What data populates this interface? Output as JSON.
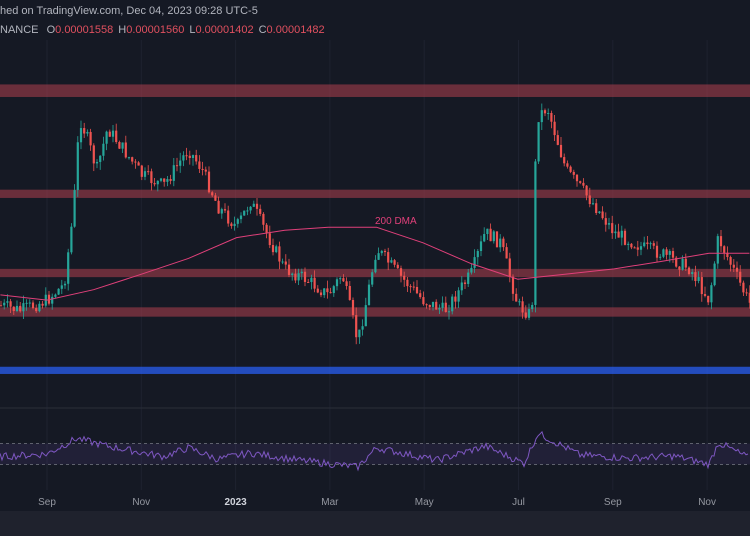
{
  "header": {
    "published": "hed on TradingView.com, Dec 04, 2023 09:28 UTC-5",
    "symbol": "NANCE",
    "ohlc": [
      {
        "k": "O",
        "v": "0.00001558"
      },
      {
        "k": "H",
        "v": "0.00001560"
      },
      {
        "k": "L",
        "v": "0.00001402"
      },
      {
        "k": "C",
        "v": "0.00001482"
      }
    ]
  },
  "colors": {
    "background": "#151924",
    "zone": "#b0404e",
    "support": "#2962ff",
    "dma": "#e0407a",
    "rsi": "#7e57c2",
    "up": "#26a69a",
    "down": "#ef5350"
  },
  "chart_data": [
    {
      "type": "line",
      "title": "",
      "annotation": "200 DMA",
      "xlabel": "",
      "ylabel": "",
      "x_ticks": [
        "Sep",
        "Nov",
        "2023",
        "Mar",
        "May",
        "Jul",
        "Sep",
        "Nov"
      ],
      "x_range": [
        "2022-08-02",
        "2023-11-27"
      ],
      "y_range": [
        8.5e-06,
        3.2e-05
      ],
      "price": [
        [
          "2022-08-02",
          1.468e-05
        ],
        [
          "2022-08-15",
          1.434e-05
        ],
        [
          "2022-09-01",
          1.502e-05
        ],
        [
          "2022-09-12",
          1.604e-05
        ],
        [
          "2022-09-18",
          2.08e-05
        ],
        [
          "2022-09-22",
          2.692e-05
        ],
        [
          "2022-09-27",
          2.556e-05
        ],
        [
          "2022-10-03",
          2.352e-05
        ],
        [
          "2022-10-10",
          2.624e-05
        ],
        [
          "2022-10-20",
          2.488e-05
        ],
        [
          "2022-11-01",
          2.318e-05
        ],
        [
          "2022-11-15",
          2.25e-05
        ],
        [
          "2022-12-01",
          2.488e-05
        ],
        [
          "2022-12-10",
          2.352e-05
        ],
        [
          "2022-12-20",
          2.114e-05
        ],
        [
          "2023-01-01",
          1.978e-05
        ],
        [
          "2023-01-10",
          2.148e-05
        ],
        [
          "2023-01-20",
          1.944e-05
        ],
        [
          "2023-02-01",
          1.706e-05
        ],
        [
          "2023-02-15",
          1.638e-05
        ],
        [
          "2023-03-01",
          1.536e-05
        ],
        [
          "2023-03-10",
          1.672e-05
        ],
        [
          "2023-03-20",
          1.23e-05
        ],
        [
          "2023-03-25",
          1.468e-05
        ],
        [
          "2023-04-01",
          1.842e-05
        ],
        [
          "2023-04-15",
          1.672e-05
        ],
        [
          "2023-05-01",
          1.502e-05
        ],
        [
          "2023-05-15",
          1.434e-05
        ],
        [
          "2023-06-01",
          1.672e-05
        ],
        [
          "2023-06-10",
          1.944e-05
        ],
        [
          "2023-06-20",
          1.876e-05
        ],
        [
          "2023-07-01",
          1.468e-05
        ],
        [
          "2023-07-10",
          1.4e-05
        ],
        [
          "2023-07-13",
          2.692e-05
        ],
        [
          "2023-07-20",
          2.76e-05
        ],
        [
          "2023-08-01",
          2.352e-05
        ],
        [
          "2023-08-20",
          2.114e-05
        ],
        [
          "2023-09-01",
          1.944e-05
        ],
        [
          "2023-09-20",
          1.842e-05
        ],
        [
          "2023-10-01",
          1.808e-05
        ],
        [
          "2023-10-20",
          1.706e-05
        ],
        [
          "2023-11-01",
          1.502e-05
        ],
        [
          "2023-11-07",
          1.91e-05
        ],
        [
          "2023-11-18",
          1.672e-05
        ],
        [
          "2023-11-27",
          1.482e-05
        ]
      ],
      "dma_200": [
        [
          "2022-08-02",
          1.536e-05
        ],
        [
          "2022-09-01",
          1.502e-05
        ],
        [
          "2022-10-01",
          1.57e-05
        ],
        [
          "2022-11-01",
          1.672e-05
        ],
        [
          "2022-12-01",
          1.774e-05
        ],
        [
          "2023-01-01",
          1.91e-05
        ],
        [
          "2023-02-01",
          1.958e-05
        ],
        [
          "2023-03-01",
          1.978e-05
        ],
        [
          "2023-04-01",
          1.978e-05
        ],
        [
          "2023-05-01",
          1.876e-05
        ],
        [
          "2023-06-01",
          1.74e-05
        ],
        [
          "2023-07-01",
          1.638e-05
        ],
        [
          "2023-08-01",
          1.672e-05
        ],
        [
          "2023-09-01",
          1.706e-05
        ],
        [
          "2023-10-01",
          1.754e-05
        ],
        [
          "2023-11-01",
          1.808e-05
        ],
        [
          "2023-11-27",
          1.808e-05
        ]
      ],
      "resistance_zones": [
        [
          2.828e-05,
          2.91e-05
        ],
        [
          2.169e-05,
          2.223e-05
        ],
        [
          1.652e-05,
          1.706e-05
        ],
        [
          1.394e-05,
          1.455e-05
        ]
      ],
      "support_zone": [
        1.02e-05,
        1.067e-05
      ]
    },
    {
      "type": "line",
      "title": "",
      "y_range": [
        0,
        100
      ],
      "levels": [
        70,
        30
      ],
      "rsi": [
        [
          "2022-08-02",
          45
        ],
        [
          "2022-09-01",
          50
        ],
        [
          "2022-09-20",
          80
        ],
        [
          "2022-10-10",
          65
        ],
        [
          "2022-11-15",
          45
        ],
        [
          "2022-12-01",
          62
        ],
        [
          "2022-12-20",
          40
        ],
        [
          "2023-01-10",
          52
        ],
        [
          "2023-02-10",
          38
        ],
        [
          "2023-03-20",
          25
        ],
        [
          "2023-04-01",
          62
        ],
        [
          "2023-05-10",
          38
        ],
        [
          "2023-06-10",
          65
        ],
        [
          "2023-07-05",
          32
        ],
        [
          "2023-07-14",
          90
        ],
        [
          "2023-08-10",
          48
        ],
        [
          "2023-09-10",
          42
        ],
        [
          "2023-10-10",
          46
        ],
        [
          "2023-11-01",
          30
        ],
        [
          "2023-11-07",
          72
        ],
        [
          "2023-11-27",
          42
        ]
      ]
    }
  ]
}
